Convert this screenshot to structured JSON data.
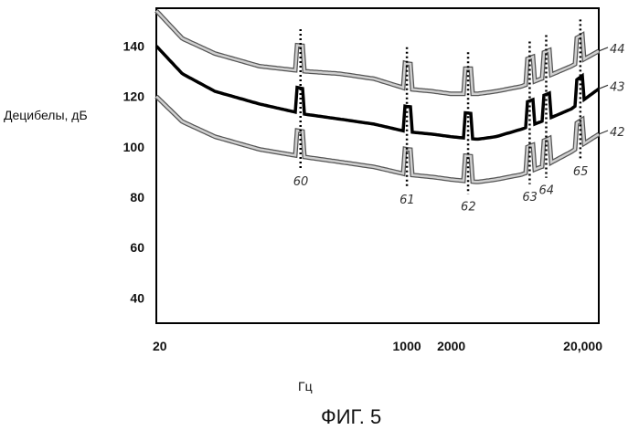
{
  "chart_data": {
    "type": "line",
    "xlabel": "Гц",
    "ylabel": "Децибелы, дБ",
    "caption": "ФИГ. 5",
    "x_scale": "log",
    "xlim": [
      20,
      20000
    ],
    "ylim": [
      30,
      155
    ],
    "x_ticks": [
      {
        "value": 20,
        "label": "20"
      },
      {
        "value": 1000,
        "label": "1000"
      },
      {
        "value": 2000,
        "label": "2000"
      },
      {
        "value": 20000,
        "label": "20,000"
      }
    ],
    "y_ticks": [
      {
        "value": 140,
        "label": "140"
      },
      {
        "value": 120,
        "label": "120"
      },
      {
        "value": 100,
        "label": "100"
      },
      {
        "value": 80,
        "label": "80"
      },
      {
        "value": 60,
        "label": "60"
      },
      {
        "value": 40,
        "label": "40"
      }
    ],
    "series": [
      {
        "name": "44",
        "color": "#9a9a9a",
        "points": [
          [
            20,
            154
          ],
          [
            30,
            143
          ],
          [
            50,
            137
          ],
          [
            100,
            132
          ],
          [
            200,
            130
          ],
          [
            350,
            129
          ],
          [
            600,
            127
          ],
          [
            1000,
            123
          ],
          [
            1500,
            122
          ],
          [
            2000,
            121
          ],
          [
            3000,
            121
          ],
          [
            4000,
            122
          ],
          [
            6000,
            124
          ],
          [
            9000,
            128
          ],
          [
            13000,
            132
          ],
          [
            20000,
            138
          ]
        ]
      },
      {
        "name": "43",
        "color": "#000000",
        "points": [
          [
            20,
            140
          ],
          [
            30,
            129
          ],
          [
            50,
            122
          ],
          [
            100,
            117
          ],
          [
            200,
            113
          ],
          [
            350,
            111
          ],
          [
            600,
            109
          ],
          [
            1000,
            106
          ],
          [
            1500,
            105
          ],
          [
            2000,
            104
          ],
          [
            3000,
            103
          ],
          [
            4000,
            104
          ],
          [
            6000,
            107
          ],
          [
            9000,
            111
          ],
          [
            13000,
            115
          ],
          [
            20000,
            123
          ]
        ]
      },
      {
        "name": "42",
        "color": "#9a9a9a",
        "points": [
          [
            20,
            120
          ],
          [
            30,
            110
          ],
          [
            50,
            104
          ],
          [
            100,
            99
          ],
          [
            200,
            96
          ],
          [
            350,
            94
          ],
          [
            600,
            92
          ],
          [
            1000,
            89
          ],
          [
            1500,
            88
          ],
          [
            2000,
            87
          ],
          [
            3000,
            86
          ],
          [
            4000,
            87
          ],
          [
            6000,
            89
          ],
          [
            9000,
            93
          ],
          [
            13000,
            98
          ],
          [
            20000,
            105
          ]
        ]
      }
    ],
    "markers": [
      {
        "label": "60",
        "x": 190
      },
      {
        "label": "61",
        "x": 1000
      },
      {
        "label": "62",
        "x": 2600
      },
      {
        "label": "63",
        "x": 6800
      },
      {
        "label": "64",
        "x": 8800
      },
      {
        "label": "65",
        "x": 15000
      }
    ],
    "bump_dB": 10
  }
}
